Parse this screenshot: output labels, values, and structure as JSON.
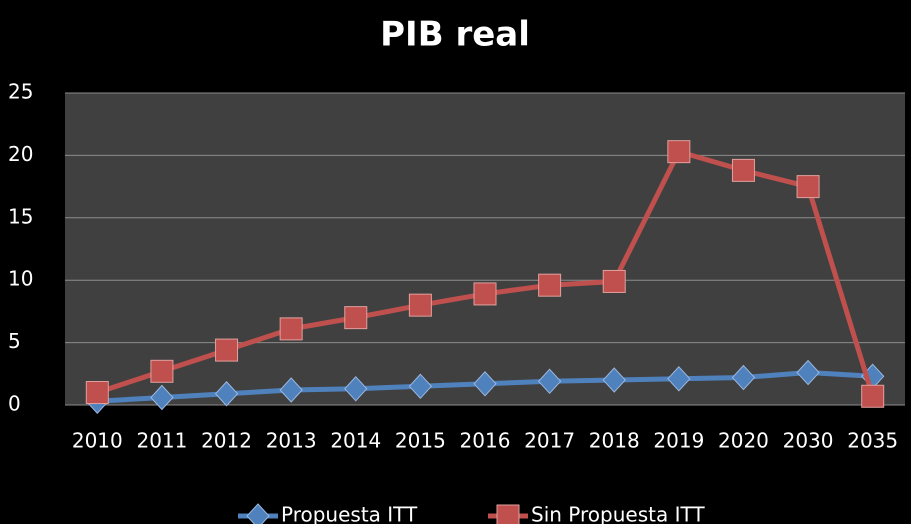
{
  "chart_data": {
    "type": "line",
    "title": "PIB real",
    "categories": [
      "2010",
      "2011",
      "2012",
      "2013",
      "2014",
      "2015",
      "2016",
      "2017",
      "2018",
      "2019",
      "2020",
      "2030",
      "2035"
    ],
    "series": [
      {
        "name": "Propuesta ITT",
        "color": "#4f81bd",
        "marker": "diamond",
        "values": [
          0.3,
          0.6,
          0.9,
          1.2,
          1.3,
          1.5,
          1.7,
          1.9,
          2.0,
          2.1,
          2.2,
          2.6,
          2.3
        ]
      },
      {
        "name": "Sin Propuesta ITT",
        "color": "#c0504d",
        "marker": "square",
        "values": [
          1.0,
          2.7,
          4.4,
          6.1,
          7.0,
          8.0,
          8.9,
          9.6,
          9.9,
          20.3,
          18.8,
          17.5,
          0.7
        ]
      }
    ],
    "ylim": [
      0,
      25
    ],
    "yticks": [
      0,
      5,
      10,
      15,
      20,
      25
    ],
    "grid": true,
    "legend": "bottom"
  }
}
